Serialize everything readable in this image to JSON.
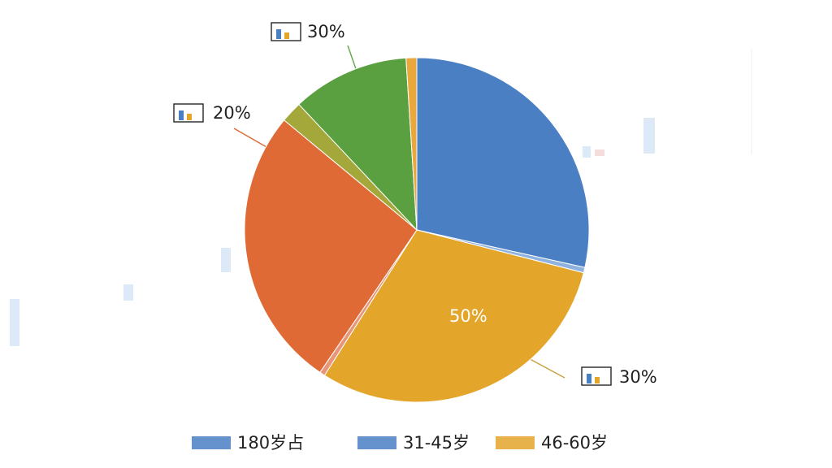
{
  "chart_data": {
    "type": "pie",
    "categories": [
      "180岁占",
      "31-45岁",
      "46-60岁",
      null,
      null,
      null,
      null,
      null
    ],
    "values": [
      28.5,
      0.5,
      30,
      0.5,
      26.5,
      2,
      11,
      1
    ],
    "colors": [
      "#4a7fc4",
      "#8fb3de",
      "#e3a52a",
      "#e8957a",
      "#df6a35",
      "#a4a83a",
      "#5aa040",
      "#e8a83c"
    ],
    "annotations": [
      "30%",
      "20%",
      "50%",
      "30%"
    ]
  }
}
